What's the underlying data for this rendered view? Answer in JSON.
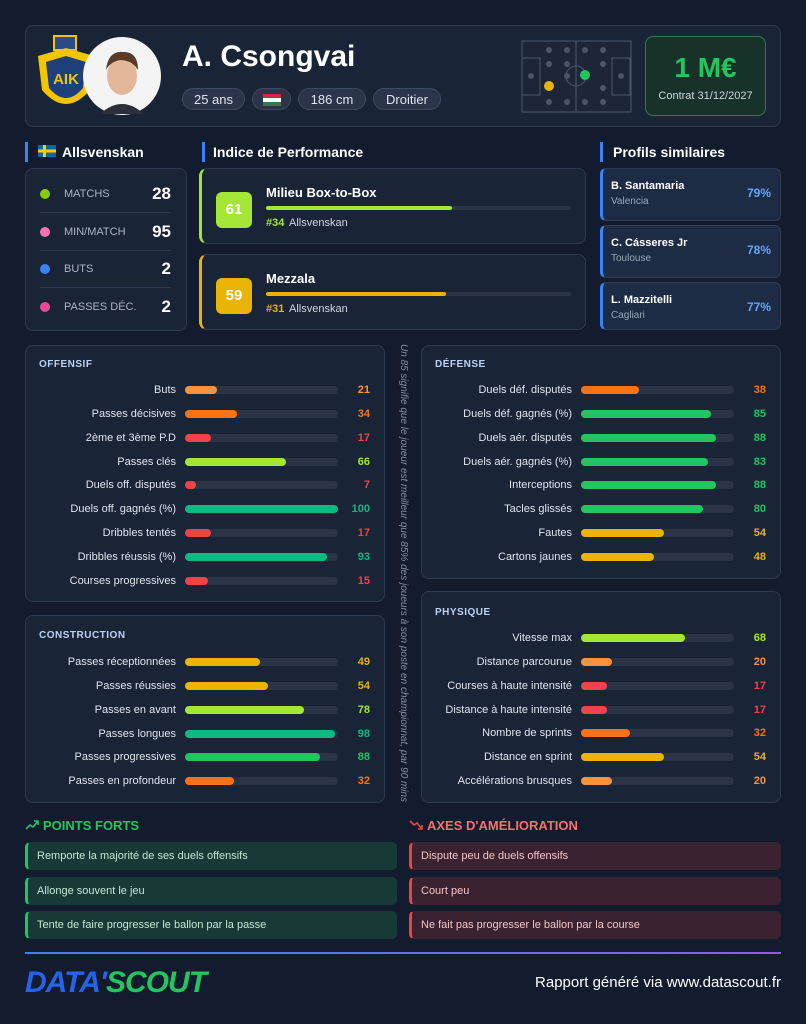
{
  "header": {
    "player_name": "A. Csongvai",
    "age": "25 ans",
    "height": "186 cm",
    "foot": "Droitier",
    "value": "1 M€",
    "contract": "Contrat 31/12/2027"
  },
  "league": {
    "name": "Allsvenskan",
    "stats": [
      {
        "label": "MATCHS",
        "value": 28
      },
      {
        "label": "MIN/MATCH",
        "value": 95
      },
      {
        "label": "BUTS",
        "value": 2
      },
      {
        "label": "PASSES DÉC.",
        "value": 2
      }
    ]
  },
  "performance": {
    "title": "Indice de Performance",
    "profiles": [
      {
        "score": 61,
        "name": "Milieu Box-to-Box",
        "rank": "#34",
        "league": "Allsvenskan"
      },
      {
        "score": 59,
        "name": "Mezzala",
        "rank": "#31",
        "league": "Allsvenskan"
      }
    ]
  },
  "similar": {
    "title": "Profils similaires",
    "players": [
      {
        "name": "B. Santamaria",
        "club": "Valencia",
        "similarity": "79%"
      },
      {
        "name": "C. Cásseres Jr",
        "club": "Toulouse",
        "similarity": "78%"
      },
      {
        "name": "L. Mazzitelli",
        "club": "Cagliari",
        "similarity": "77%"
      }
    ]
  },
  "percentile_range": [
    0,
    100
  ],
  "note": "Un 85 signifie que le joueur est meilleur que 85% des joueurs à son poste en championnat, par 90 mins",
  "sections": [
    {
      "title": "OFFENSIF",
      "metrics": [
        {
          "label": "Buts",
          "value": 21
        },
        {
          "label": "Passes décisives",
          "value": 34
        },
        {
          "label": "2ème et 3ème P.D",
          "value": 17
        },
        {
          "label": "Passes clés",
          "value": 66
        },
        {
          "label": "Duels off. disputés",
          "value": 7
        },
        {
          "label": "Duels off. gagnés (%)",
          "value": 100
        },
        {
          "label": "Dribbles tentés",
          "value": 17
        },
        {
          "label": "Dribbles réussis (%)",
          "value": 93
        },
        {
          "label": "Courses progressives",
          "value": 15
        }
      ]
    },
    {
      "title": "CONSTRUCTION",
      "metrics": [
        {
          "label": "Passes réceptionnées",
          "value": 49
        },
        {
          "label": "Passes réussies",
          "value": 54
        },
        {
          "label": "Passes en avant",
          "value": 78
        },
        {
          "label": "Passes longues",
          "value": 98
        },
        {
          "label": "Passes progressives",
          "value": 88
        },
        {
          "label": "Passes en profondeur",
          "value": 32
        }
      ]
    },
    {
      "title": "DÉFENSE",
      "metrics": [
        {
          "label": "Duels déf. disputés",
          "value": 38
        },
        {
          "label": "Duels déf. gagnés (%)",
          "value": 85
        },
        {
          "label": "Duels aér. disputés",
          "value": 88
        },
        {
          "label": "Duels aér. gagnés (%)",
          "value": 83
        },
        {
          "label": "Interceptions",
          "value": 88
        },
        {
          "label": "Tacles glissés",
          "value": 80
        },
        {
          "label": "Fautes",
          "value": 54
        },
        {
          "label": "Cartons jaunes",
          "value": 48
        }
      ]
    },
    {
      "title": "PHYSIQUE",
      "metrics": [
        {
          "label": "Vitesse max",
          "value": 68
        },
        {
          "label": "Distance parcourue",
          "value": 20
        },
        {
          "label": "Courses à haute intensité",
          "value": 17
        },
        {
          "label": "Distance à haute intensité",
          "value": 17
        },
        {
          "label": "Nombre de sprints",
          "value": 32
        },
        {
          "label": "Distance en sprint",
          "value": 54
        },
        {
          "label": "Accélérations brusques",
          "value": 20
        }
      ]
    }
  ],
  "strengths": {
    "title": "POINTS FORTS",
    "items": [
      "Remporte la majorité de ses duels offensifs",
      "Allonge souvent le jeu",
      "Tente de faire progresser le ballon par la passe"
    ]
  },
  "improvements": {
    "title": "AXES D'AMÉLIORATION",
    "items": [
      "Dispute peu de duels offensifs",
      "Court peu",
      "Ne fait pas progresser le ballon par la course"
    ]
  },
  "footer": {
    "logo_left": "DATA'",
    "logo_right": "SCOUT",
    "text": "Rapport généré via www.datascout.fr"
  }
}
